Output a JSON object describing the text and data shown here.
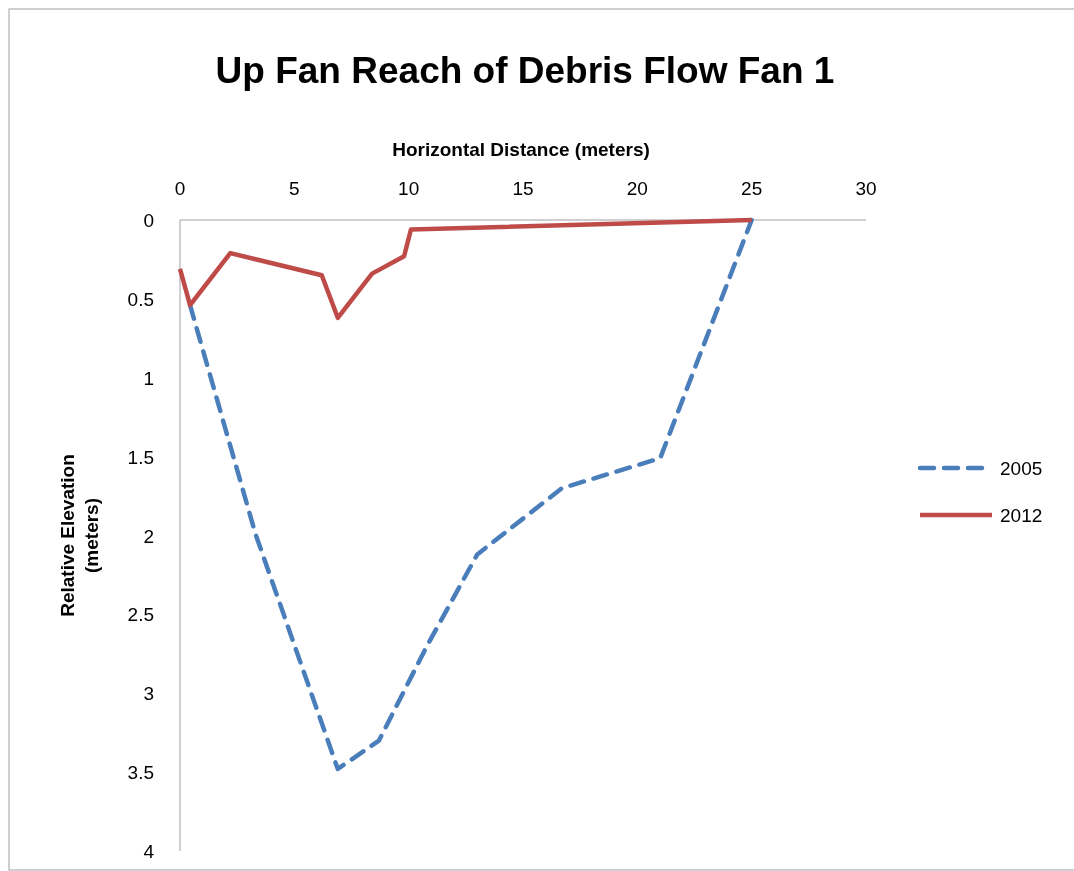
{
  "chart_data": {
    "type": "line",
    "title": "Up Fan Reach of Debris Flow Fan 1",
    "xlabel": "Horizontal Distance (meters)",
    "ylabel": "Relative Elevation (meters)",
    "xlim": [
      0,
      30
    ],
    "xticks": [
      0,
      5,
      10,
      15,
      20,
      25,
      30
    ],
    "ylim": [
      4,
      0
    ],
    "yticks": [
      0,
      0.5,
      1,
      1.5,
      2,
      2.5,
      3,
      3.5,
      4
    ],
    "legend": "right",
    "grid": false,
    "marker": "none",
    "series": [
      {
        "name": "2005",
        "color": "#4a7ebb",
        "line_style": "dashed",
        "x": [
          0.44,
          3.3,
          6.9,
          8.7,
          10.8,
          13.0,
          16.7,
          21.0,
          25
        ],
        "values": [
          0.54,
          1.99,
          3.48,
          3.3,
          2.7,
          2.12,
          1.7,
          1.51,
          0
        ]
      },
      {
        "name": "2012",
        "color": "#be4b48",
        "line_style": "solid",
        "x": [
          0,
          0.44,
          2.2,
          6.2,
          6.9,
          8.4,
          9.8,
          10.1,
          25
        ],
        "values": [
          0.31,
          0.54,
          0.21,
          0.35,
          0.62,
          0.34,
          0.23,
          0.06,
          0
        ]
      }
    ]
  }
}
